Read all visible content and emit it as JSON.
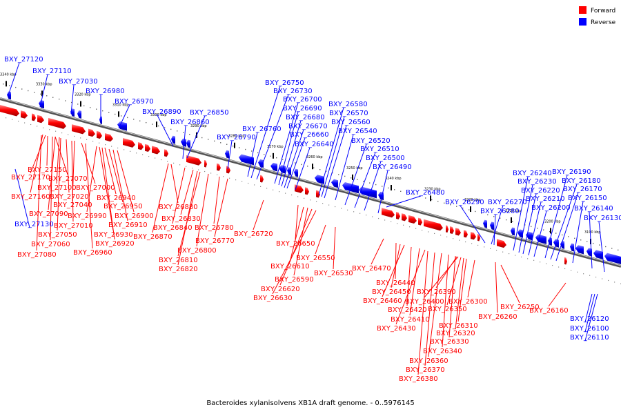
{
  "caption": "Bacteroides xylanisolvens XB1A draft genome. - 0..5976145",
  "legend": [
    {
      "label": "Forward",
      "color": "#ff0000"
    },
    {
      "label": "Reverse",
      "color": "#0000ff"
    }
  ],
  "colors": {
    "forward": "#ff0000",
    "reverse": "#0000ff",
    "backbone": "#555555"
  },
  "ticks": [
    "3340 kbp",
    "3330 kbp",
    "3320 kbp",
    "3310 kbp",
    "3300 kbp",
    "3290 kbp",
    "3280 kbp",
    "3270 kbp",
    "3260 kbp",
    "3250 kbp",
    "3240 kbp",
    "3230 kbp",
    "3220 kbp",
    "3210 kbp",
    "3200 kbp",
    "3190 kbp"
  ],
  "reverse_genes": [
    "BXY_27120",
    "BXY_27110",
    "BXY_27030",
    "BXY_26980",
    "BXY_26970",
    "BXY_26890",
    "BXY_26850",
    "BXY_26860",
    "BXY_26790",
    "BXY_26750",
    "BXY_26730",
    "BXY_26760",
    "BXY_26700",
    "BXY_26690",
    "BXY_26680",
    "BXY_26670",
    "BXY_26660",
    "BXY_26640",
    "BXY_26580",
    "BXY_26570",
    "BXY_26560",
    "BXY_26540",
    "BXY_26520",
    "BXY_26510",
    "BXY_26500",
    "BXY_26490",
    "BXY_26480",
    "BXY_26290",
    "BXY_26270",
    "BXY_26280",
    "BXY_26240",
    "BXY_26190",
    "BXY_26230",
    "BXY_26180",
    "BXY_26220",
    "BXY_26170",
    "BXY_26210",
    "BXY_26150",
    "BXY_26200",
    "BXY_26140",
    "BXY_26130",
    "BXY_27130",
    "BXY_26120",
    "BXY_26100",
    "BXY_26110"
  ],
  "forward_genes": [
    "BXY_27150",
    "BXY_27070",
    "BXY_27170",
    "BXY_27100",
    "BXY_27000",
    "BXY_27160",
    "BXY_27020",
    "BXY_27040",
    "BXY_27090",
    "BXY_26990",
    "BXY_27010",
    "BXY_27050",
    "BXY_27060",
    "BXY_27080",
    "BXY_26940",
    "BXY_26950",
    "BXY_26900",
    "BXY_26910",
    "BXY_26930",
    "BXY_26920",
    "BXY_26960",
    "BXY_26880",
    "BXY_26830",
    "BXY_26840",
    "BXY_26870",
    "BXY_26780",
    "BXY_26770",
    "BXY_26800",
    "BXY_26810",
    "BXY_26820",
    "BXY_26720",
    "BXY_26650",
    "BXY_26610",
    "BXY_26590",
    "BXY_26620",
    "BXY_26630",
    "BXY_26550",
    "BXY_26530",
    "BXY_26470",
    "BXY_26440",
    "BXY_26450",
    "BXY_26460",
    "BXY_26390",
    "BXY_26400",
    "BXY_26420",
    "BXY_26410",
    "BXY_26430",
    "BXY_26300",
    "BXY_26350",
    "BXY_26310",
    "BXY_26320",
    "BXY_26330",
    "BXY_26340",
    "BXY_26360",
    "BXY_26370",
    "BXY_26380",
    "BXY_26250",
    "BXY_26260",
    "BXY_26160"
  ]
}
